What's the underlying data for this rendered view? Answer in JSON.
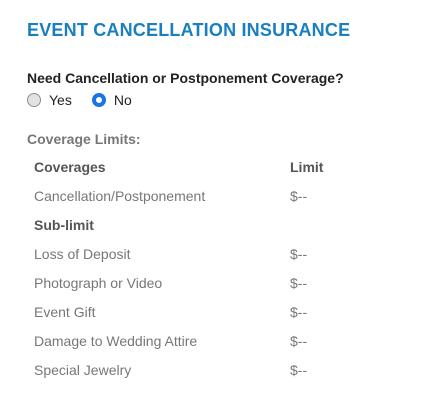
{
  "section": {
    "title": "EVENT CANCELLATION INSURANCE"
  },
  "question": {
    "label": "Need Cancellation or Postponement Coverage?",
    "options": [
      {
        "label": "Yes",
        "selected": false
      },
      {
        "label": "No",
        "selected": true
      }
    ]
  },
  "coverage": {
    "heading": "Coverage Limits:",
    "columns": {
      "coverage": "Coverages",
      "limit": "Limit"
    },
    "main_row": {
      "name": "Cancellation/Postponement",
      "limit": "$--"
    },
    "sublimit_label": "Sub-limit",
    "sublimits": [
      {
        "name": "Loss of Deposit",
        "limit": "$--"
      },
      {
        "name": "Photograph or Video",
        "limit": "$--"
      },
      {
        "name": "Event Gift",
        "limit": "$--"
      },
      {
        "name": "Damage to Wedding Attire",
        "limit": "$--"
      },
      {
        "name": "Special Jewelry",
        "limit": "$--"
      }
    ]
  },
  "colors": {
    "title": "#1a7fc1",
    "radio_selected": "#1a73e8"
  }
}
